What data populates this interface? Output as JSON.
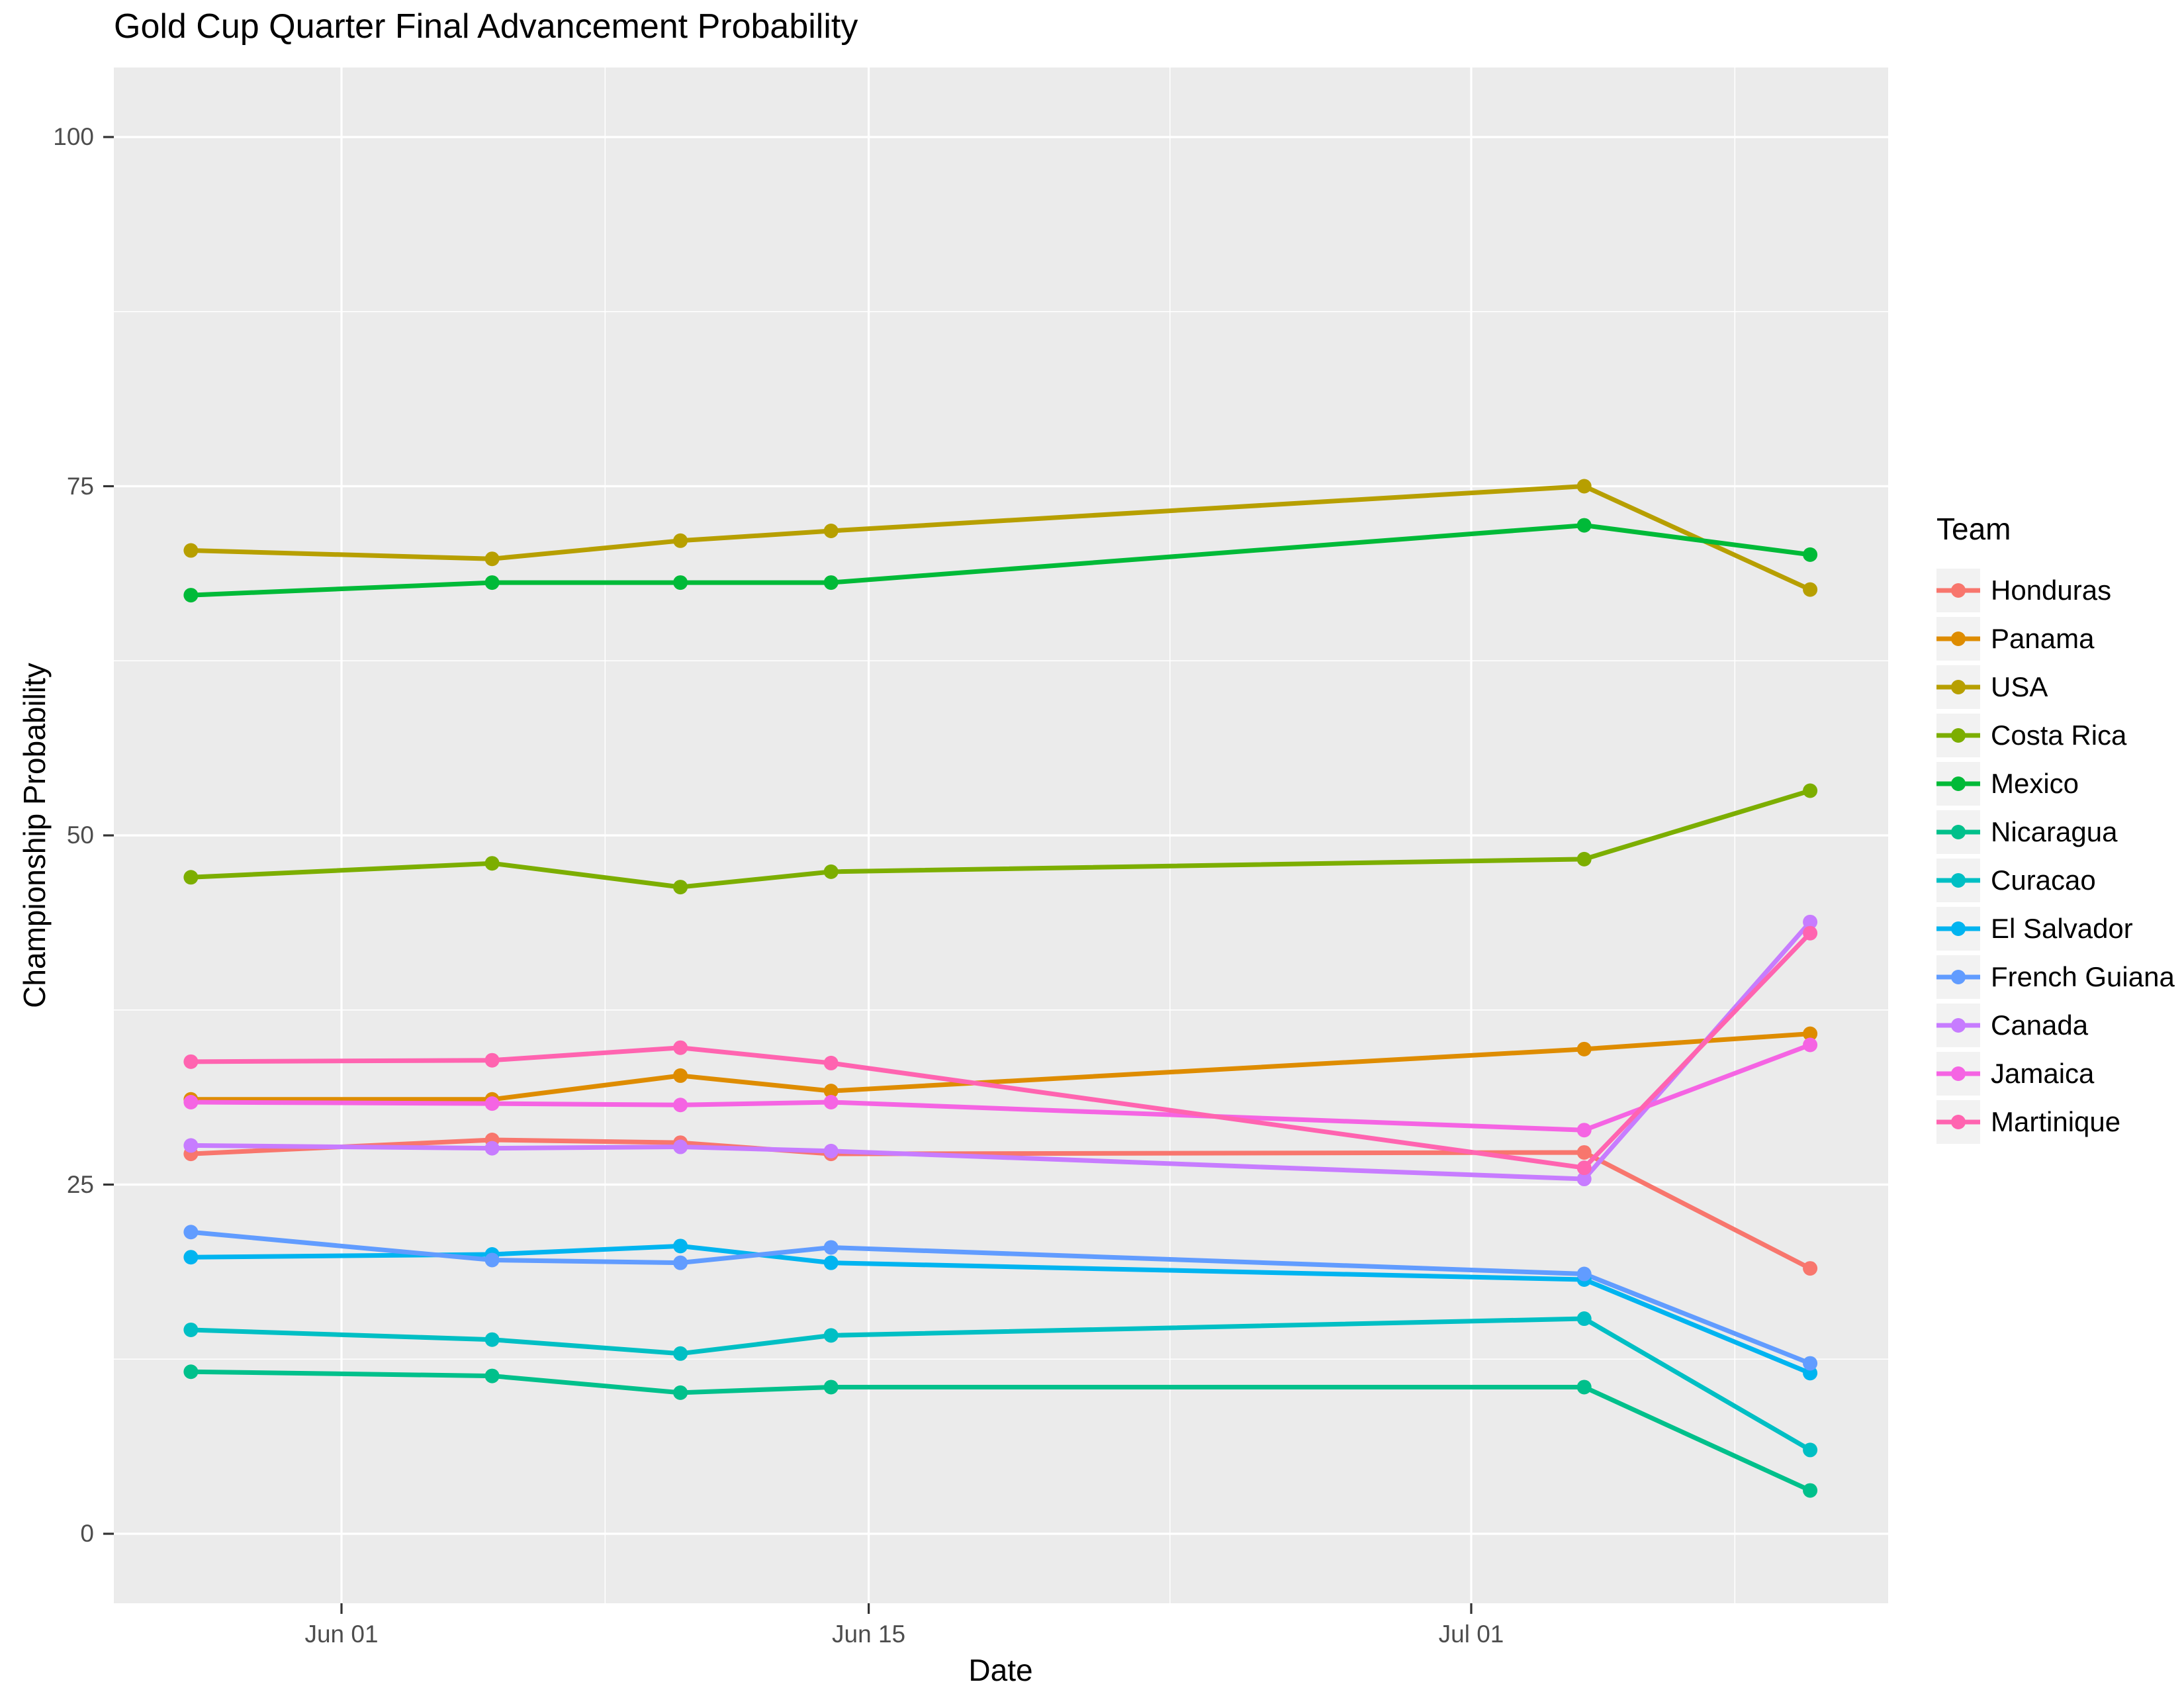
{
  "chart_data": {
    "type": "line",
    "title": "Gold Cup Quarter Final Advancement Probability",
    "xlabel": "Date",
    "ylabel": "Championship Probability",
    "legend_title": "Team",
    "legend_position": "right",
    "panel_background": "#EBEBEB",
    "grid_color": "#FFFFFF",
    "tick_text_color": "#4D4D4D",
    "ylim": [
      0,
      100
    ],
    "y_ticks": [
      0,
      25,
      50,
      75,
      100
    ],
    "y_minor_ticks": [
      12.5,
      37.5,
      62.5,
      87.5
    ],
    "x_tick_labels": [
      "Jun 01",
      "Jun 15",
      "Jul 01"
    ],
    "x_tick_days": [
      4,
      18,
      34
    ],
    "x_minor_tick_days": [
      11,
      26,
      41
    ],
    "dates": [
      "May 28",
      "Jun 05",
      "Jun 10",
      "Jun 14",
      "Jul 04",
      "Jul 10"
    ],
    "day_offsets": [
      0,
      8,
      13,
      17,
      37,
      43
    ],
    "series": [
      {
        "name": "Honduras",
        "color": "#F8766D",
        "values": [
          27.2,
          28.2,
          28.0,
          27.2,
          27.3,
          19.0
        ]
      },
      {
        "name": "Panama",
        "color": "#DE8C00",
        "values": [
          31.1,
          31.1,
          32.8,
          31.7,
          34.7,
          35.8
        ]
      },
      {
        "name": "USA",
        "color": "#B79F00",
        "values": [
          70.4,
          69.8,
          71.1,
          71.8,
          75.0,
          67.6
        ]
      },
      {
        "name": "Costa Rica",
        "color": "#7CAE00",
        "values": [
          47.0,
          48.0,
          46.3,
          47.4,
          48.3,
          53.2
        ]
      },
      {
        "name": "Mexico",
        "color": "#00BA38",
        "values": [
          67.2,
          68.1,
          68.1,
          68.1,
          72.2,
          70.1
        ]
      },
      {
        "name": "Nicaragua",
        "color": "#00C08B",
        "values": [
          11.6,
          11.3,
          10.1,
          10.5,
          10.5,
          3.1
        ]
      },
      {
        "name": "Curacao",
        "color": "#00BFC4",
        "values": [
          14.6,
          13.9,
          12.9,
          14.2,
          15.4,
          6.0
        ]
      },
      {
        "name": "El Salvador",
        "color": "#00B4F0",
        "values": [
          19.8,
          20.0,
          20.6,
          19.4,
          18.2,
          11.5
        ]
      },
      {
        "name": "French Guiana",
        "color": "#619CFF",
        "values": [
          21.6,
          19.6,
          19.4,
          20.5,
          18.6,
          12.2
        ]
      },
      {
        "name": "Canada",
        "color": "#C77CFF",
        "values": [
          27.8,
          27.6,
          27.7,
          27.4,
          25.4,
          43.8
        ]
      },
      {
        "name": "Jamaica",
        "color": "#F564E3",
        "values": [
          30.9,
          30.8,
          30.7,
          30.9,
          28.9,
          35.0
        ]
      },
      {
        "name": "Martinique",
        "color": "#FF64B0",
        "values": [
          33.8,
          33.9,
          34.8,
          33.7,
          26.2,
          43.0
        ]
      }
    ]
  }
}
